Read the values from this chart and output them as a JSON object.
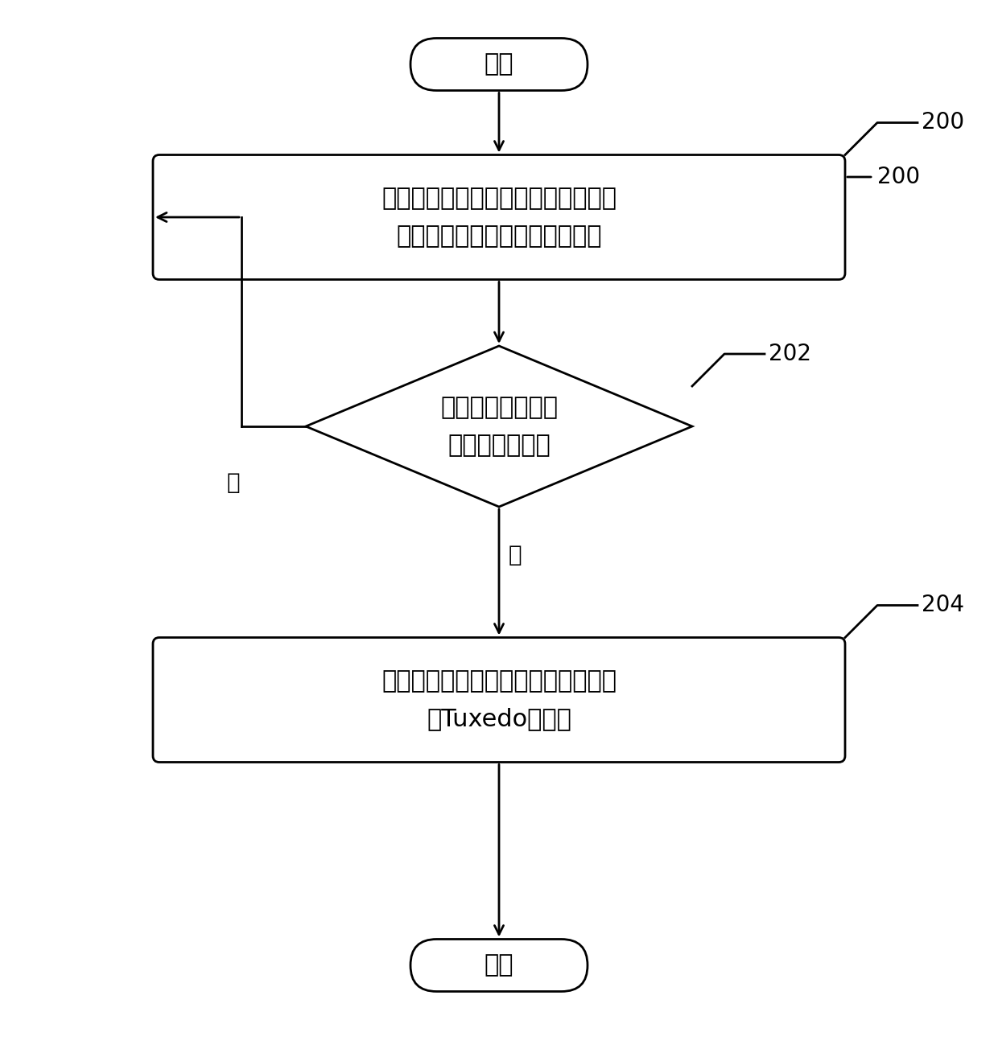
{
  "bg_color": "#ffffff",
  "line_color": "#000000",
  "fill_color": "#ffffff",
  "text_color": "#000000",
  "font_size_main": 22,
  "font_size_label": 20,
  "font_size_ref": 20,
  "start_end_text": [
    "开始",
    "结束"
  ],
  "box1_text": "周期性地探测生产主机的工作状态，\n并将探测结果记录在探测日志中",
  "diamond_text": "根据探测结果判断\n是否存在异常？",
  "box2_text": "隔离异常生产主机，并启动应急主机\n的Tuxedo域配置",
  "ref1": "200",
  "ref2": "202",
  "ref3": "204",
  "no_label": "否",
  "yes_label": "是"
}
